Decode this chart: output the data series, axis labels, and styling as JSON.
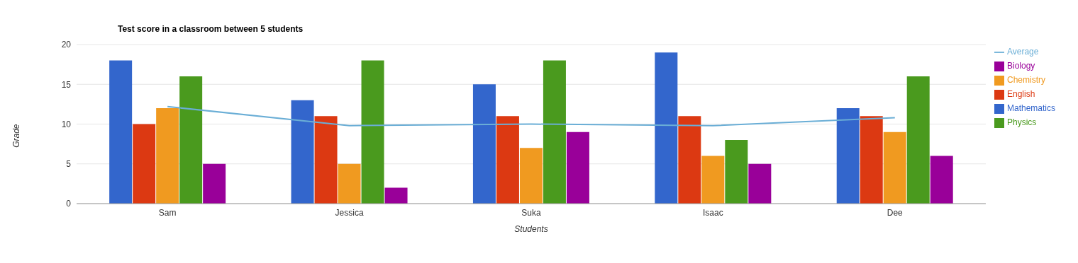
{
  "chart_data": {
    "type": "bar",
    "title": "Test score in a classroom between 5 students",
    "xlabel": "Students",
    "ylabel": "Grade",
    "categories": [
      "Sam",
      "Jessica",
      "Suka",
      "Isaac",
      "Dee"
    ],
    "series": [
      {
        "name": "Mathematics",
        "color": "#3366cc",
        "values": [
          18,
          13,
          15,
          19,
          12
        ]
      },
      {
        "name": "English",
        "color": "#dc3912",
        "values": [
          10,
          11,
          11,
          11,
          11
        ]
      },
      {
        "name": "Chemistry",
        "color": "#f09a20",
        "values": [
          12,
          5,
          7,
          6,
          9
        ]
      },
      {
        "name": "Physics",
        "color": "#4a9a1e",
        "values": [
          16,
          18,
          18,
          8,
          16
        ]
      },
      {
        "name": "Biology",
        "color": "#990099",
        "values": [
          5,
          2,
          9,
          5,
          6
        ]
      },
      {
        "name": "Average",
        "type": "line",
        "color": "#6aaed6",
        "values": [
          12.2,
          9.8,
          10,
          9.8,
          10.8
        ]
      }
    ],
    "ylim": [
      0,
      20
    ],
    "yticks": [
      0,
      5,
      10,
      15,
      20
    ],
    "grid": "y",
    "legend": "top right",
    "marker": "none"
  }
}
